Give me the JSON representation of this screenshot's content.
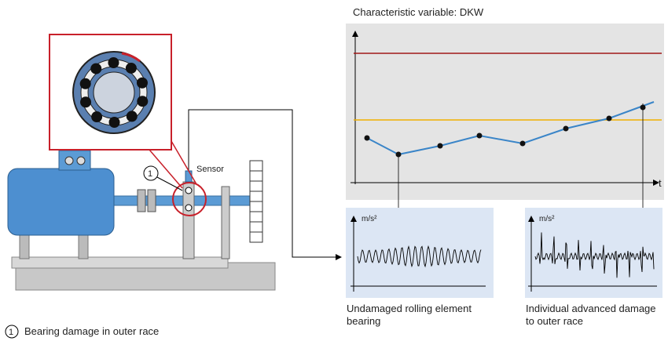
{
  "title": "Characteristic variable: DKW",
  "time_axis_label": "t",
  "sensor_label": "Sensor",
  "callout_number": "1",
  "panels": [
    {
      "unit": "m/s²",
      "caption": "Undamaged rolling element bearing"
    },
    {
      "unit": "m/s²",
      "caption": "Individual advanced damage to outer race"
    }
  ],
  "legend": {
    "number": "1",
    "text": "Bearing damage in outer race"
  }
}
